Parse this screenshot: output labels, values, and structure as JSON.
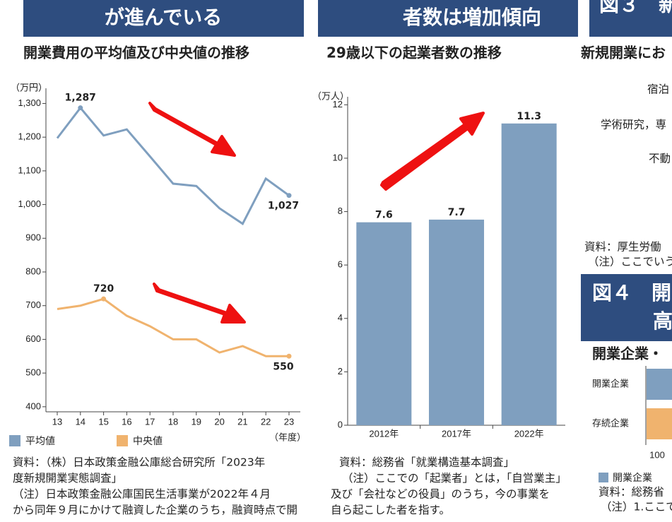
{
  "chart_data": [
    {
      "type": "line",
      "title": "開業費用の平均値及び中央値の推移",
      "y_label": "（万円）",
      "x_label": "（年度）",
      "categories": [
        "13",
        "14",
        "15",
        "16",
        "17",
        "18",
        "19",
        "20",
        "21",
        "22",
        "23"
      ],
      "series": [
        {
          "name": "平均値",
          "color": "#7f9fbf",
          "values": [
            1197,
            1287,
            1205,
            1223,
            1143,
            1062,
            1055,
            989,
            943,
            1077,
            1027
          ],
          "value_labels": [
            null,
            "1,287",
            null,
            null,
            null,
            null,
            null,
            null,
            null,
            null,
            "1,027"
          ]
        },
        {
          "name": "中央値",
          "color": "#f0b36e",
          "values": [
            690,
            700,
            720,
            670,
            639,
            600,
            600,
            561,
            580,
            550,
            550
          ],
          "value_labels": [
            null,
            null,
            "720",
            null,
            null,
            null,
            null,
            null,
            null,
            null,
            "550"
          ]
        }
      ],
      "ylim": [
        385,
        1345
      ],
      "yticks": [
        400,
        500,
        600,
        700,
        800,
        900,
        {
          "value": 1000,
          "label": "1,000"
        },
        {
          "value": 1100,
          "label": "1,100"
        },
        {
          "value": 1200,
          "label": "1,200"
        },
        {
          "value": 1300,
          "label": "1,300"
        }
      ]
    },
    {
      "type": "bar",
      "title": "29歳以下の起業者数の推移",
      "y_label": "（万人）",
      "categories": [
        "2012年",
        "2017年",
        "2022年"
      ],
      "values": [
        7.6,
        7.7,
        11.3
      ],
      "color": "#7f9fbf",
      "ylim": [
        0,
        12.3
      ],
      "yticks": [
        0,
        2,
        4,
        6,
        8,
        10,
        12
      ]
    }
  ],
  "document": {
    "left": {
      "banner": "が進んでいる",
      "notes": [
        "資料：（株）日本政策金融公庫総合研究所「2023年",
        "度新規開業実態調査」",
        "（注）日本政策金融公庫国民生活事業が2022年４月",
        "から同年９月にかけて融資した企業のうち，融資時点で開"
      ]
    },
    "middle": {
      "banner": "者数は増加傾向",
      "notes": [
        "資料：総務省「就業構造基本調査」",
        "（注）ここでの「起業者」とは，「自営業主」",
        "及び「会社などの役員」のうち，今の事業を",
        "自ら起こした者を指す。"
      ]
    },
    "right": {
      "banner": "図３　新",
      "subtitle": "新規開業にお",
      "labels": [
        "宿泊",
        "学術研究，専",
        "不動"
      ],
      "notes": [
        "資料：厚生労働",
        "（注）ここでいう"
      ],
      "banner2": [
        "図４　開",
        "高"
      ],
      "subtitle2": "開業企業・",
      "bar_labels": [
        "開業企業",
        "存続企業"
      ],
      "axis": "100",
      "legend": "開業企業",
      "notes2": [
        "資料：総務省",
        "（注）1.ここで"
      ]
    }
  }
}
